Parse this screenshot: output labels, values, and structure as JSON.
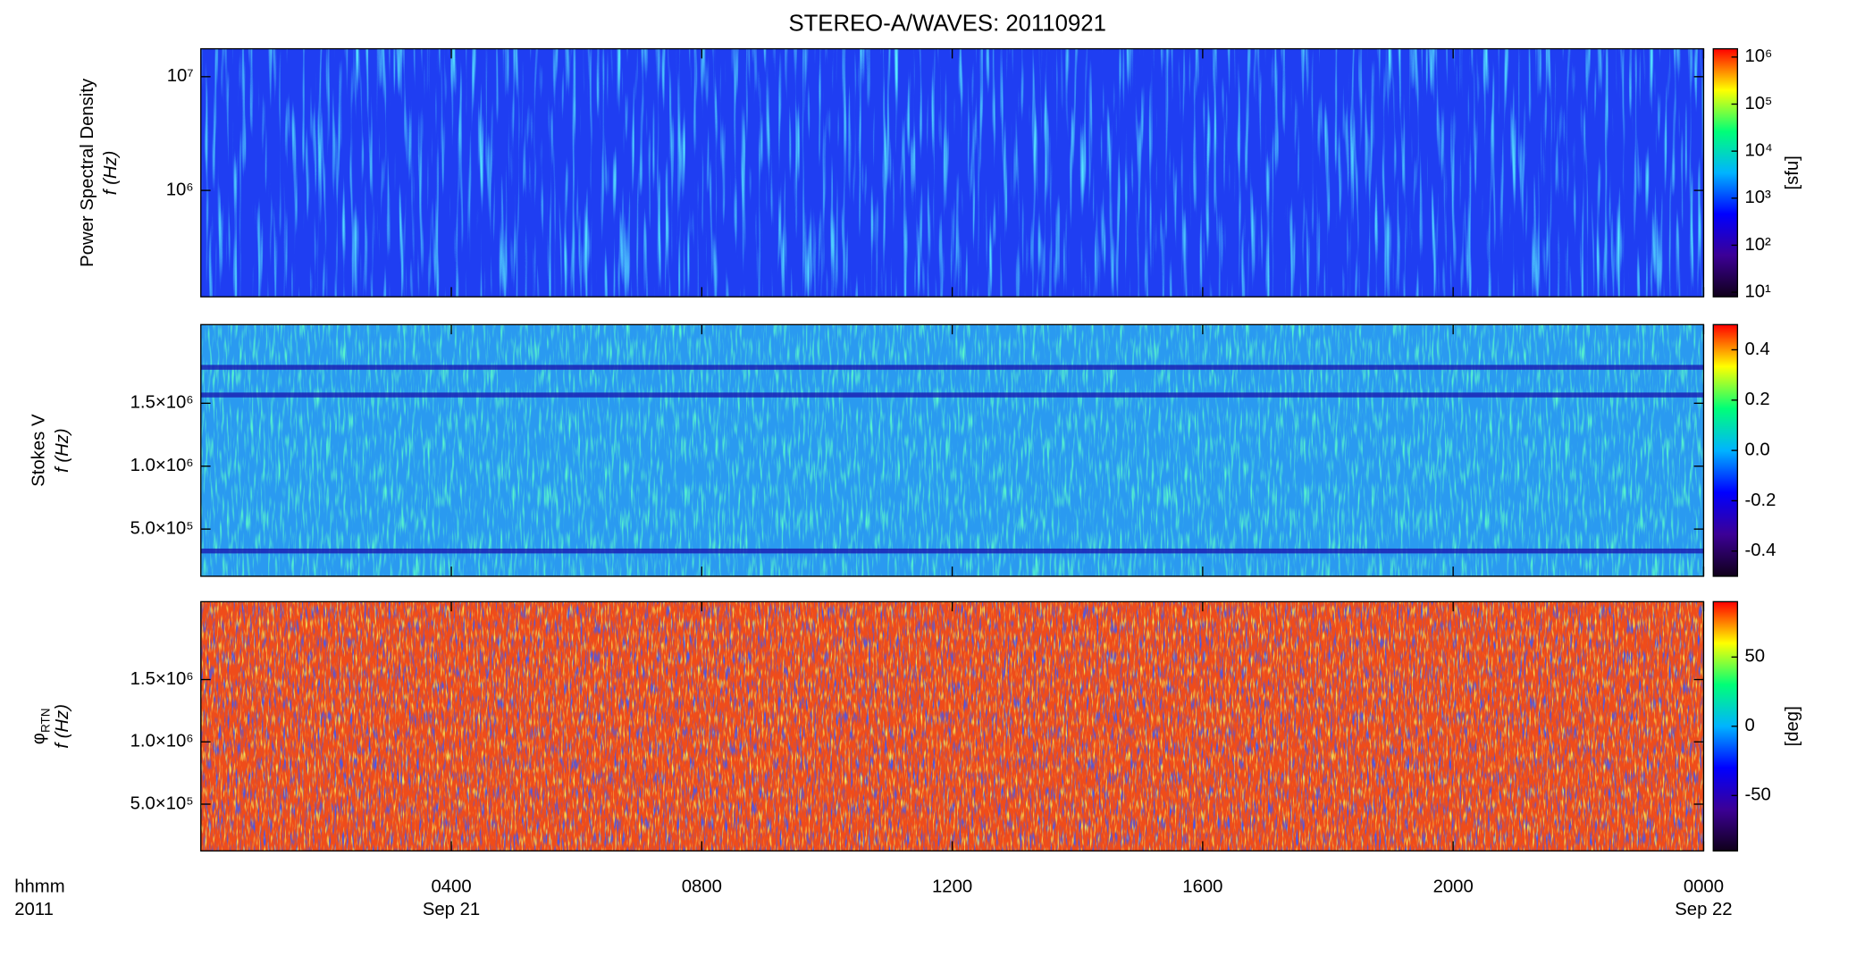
{
  "title": "STEREO-A/WAVES: 20110921",
  "colormap": [
    "#10001a",
    "#3c0096",
    "#0000ff",
    "#00b4ff",
    "#00ff78",
    "#ffff00",
    "#ff0000"
  ],
  "x_axis": {
    "xlim": [
      0,
      24
    ],
    "xticks": [
      {
        "value": 4,
        "label": "0400"
      },
      {
        "value": 8,
        "label": "0800"
      },
      {
        "value": 12,
        "label": "1200"
      },
      {
        "value": 16,
        "label": "1600"
      },
      {
        "value": 20,
        "label": "2000"
      },
      {
        "value": 24,
        "label": "0000"
      }
    ],
    "date_labels": [
      {
        "value": 4,
        "label": "Sep 21"
      },
      {
        "value": 24,
        "label": "Sep 22"
      }
    ],
    "xlabel": "hhmm",
    "xlabel2": "2011"
  },
  "chart_data": [
    {
      "type": "heatmap",
      "ylabel": "Power Spectral Density",
      "ylabel2": "f (Hz)",
      "yscale": "log",
      "ylim": [
        116000,
        17600000
      ],
      "yticks": [
        {
          "value": 1000000,
          "label": "10⁶"
        },
        {
          "value": 10000000,
          "label": "10⁷"
        }
      ],
      "colorbar": {
        "scale": "log",
        "lim": [
          8,
          1500000
        ],
        "label": "[sfu]",
        "ticks": [
          {
            "value": 10,
            "label": "10¹"
          },
          {
            "value": 100,
            "label": "10²"
          },
          {
            "value": 1000,
            "label": "10³"
          },
          {
            "value": 10000,
            "label": "10⁴"
          },
          {
            "value": 100000,
            "label": "10⁵"
          },
          {
            "value": 1000000,
            "label": "10⁶"
          }
        ]
      }
    },
    {
      "type": "heatmap",
      "ylabel": "Stokes V",
      "ylabel2": "f (Hz)",
      "yscale": "linear",
      "ylim": [
        125000,
        2125000
      ],
      "yticks": [
        {
          "value": 500000,
          "label": "5.0×10⁵"
        },
        {
          "value": 1000000,
          "label": "1.0×10⁶"
        },
        {
          "value": 1500000,
          "label": "1.5×10⁶"
        }
      ],
      "colorbar": {
        "scale": "linear",
        "lim": [
          -0.5,
          0.5
        ],
        "ticks": [
          -0.4,
          -0.2,
          {
            "value": 0,
            "label": "0.0"
          },
          0.2,
          0.4
        ]
      }
    },
    {
      "type": "heatmap",
      "ylabel": "φ",
      "ylabel_sub": "RTN",
      "ylabel2": "f (Hz)",
      "yscale": "linear",
      "ylim": [
        125000,
        2125000
      ],
      "yticks": [
        {
          "value": 500000,
          "label": "5.0×10⁵"
        },
        {
          "value": 1000000,
          "label": "1.0×10⁶"
        },
        {
          "value": 1500000,
          "label": "1.5×10⁶"
        }
      ],
      "colorbar": {
        "scale": "linear",
        "lim": [
          -90,
          90
        ],
        "label": "[deg]",
        "ticks": [
          -50,
          0,
          50
        ]
      }
    }
  ]
}
